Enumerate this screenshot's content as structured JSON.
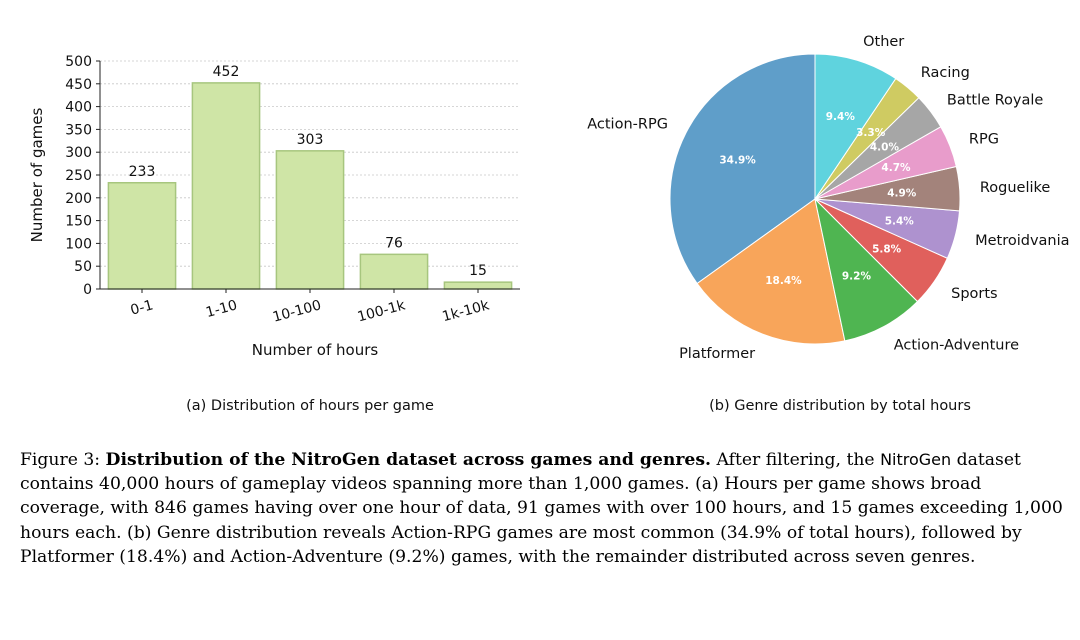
{
  "chart_data": [
    {
      "type": "bar",
      "categories": [
        "0-1",
        "1-10",
        "10-100",
        "100-1k",
        "1k-10k"
      ],
      "values": [
        233,
        452,
        303,
        76,
        15
      ],
      "data_labels": [
        "233",
        "452",
        "303",
        "76",
        "15"
      ],
      "xlabel": "Number of hours",
      "ylabel": "Number of games",
      "ylim": [
        0,
        500
      ],
      "yticks": [
        "0",
        "50",
        "100",
        "150",
        "200",
        "250",
        "300",
        "350",
        "400",
        "450",
        "500"
      ],
      "grid": "horizontal dotted",
      "caption": "(a) Distribution of hours per game",
      "bar_color": "#cfe5a6",
      "bar_edge_color": "#a7c67e"
    },
    {
      "type": "pie",
      "labels": [
        "Action-RPG",
        "Platformer",
        "Action-Adventure",
        "Sports",
        "Metroidvania",
        "Roguelike",
        "RPG",
        "Battle Royale",
        "Racing",
        "Other"
      ],
      "values": [
        34.9,
        18.4,
        9.2,
        5.8,
        5.4,
        4.9,
        4.7,
        4.0,
        3.3,
        9.4
      ],
      "pct_labels": [
        "34.9%",
        "18.4%",
        "9.2%",
        "5.8%",
        "5.4%",
        "4.9%",
        "4.7%",
        "4.0%",
        "3.3%",
        "9.4%"
      ],
      "colors": [
        "#5f9ec9",
        "#f8a55a",
        "#4fb551",
        "#e0605c",
        "#ae92cf",
        "#a3837b",
        "#e89ccb",
        "#a6a6a6",
        "#cfcb62",
        "#5fd3de"
      ],
      "caption": "(b) Genre distribution by total hours"
    }
  ],
  "figure_caption": {
    "prefix": "Figure 3:",
    "bold_title": "Distribution of the NitroGen dataset across games and genres.",
    "text_1": "After filtering, the",
    "name": "NitroGen",
    "text_2": "dataset contains 40,000 hours of gameplay videos spanning more than 1,000 games. (a) Hours per game shows broad coverage, with 846 games having over one hour of data, 91 games with over 100 hours, and 15 games exceeding 1,000 hours each. (b) Genre distribution reveals Action-RPG games are most common (34.9% of total hours), followed by Platformer (18.4%) and Action-Adventure (9.2%) games, with the remainder distributed across seven genres."
  }
}
